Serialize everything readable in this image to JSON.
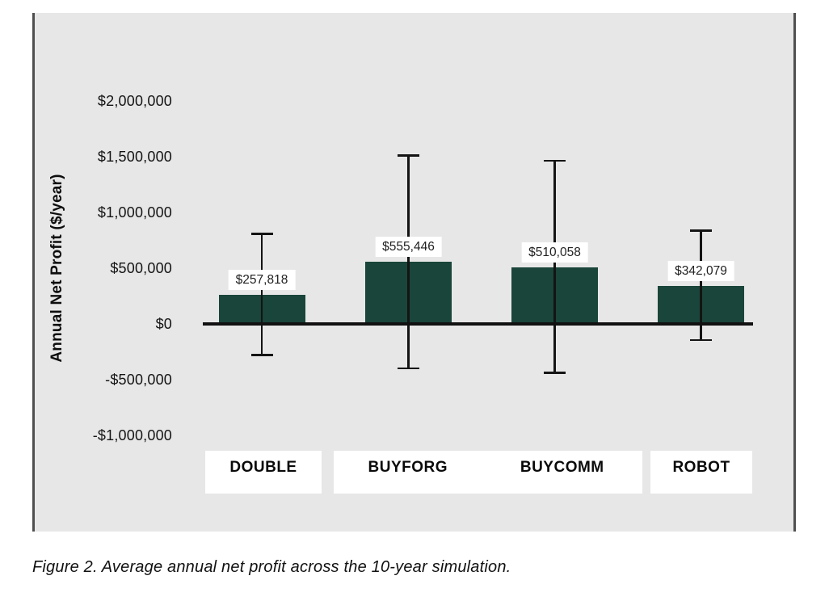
{
  "figure": {
    "caption": "Figure 2. Average annual net profit across the 10-year simulation."
  },
  "chart_data": {
    "type": "bar",
    "title": "",
    "xlabel": "",
    "ylabel": "Annual Net Profit ($/year)",
    "categories": [
      "DOUBLE",
      "BUYFORG",
      "BUYCOMM",
      "ROBOT"
    ],
    "values": [
      257818,
      555446,
      510058,
      342079
    ],
    "value_labels": [
      "$257,818",
      "$555,446",
      "$510,058",
      "$342,079"
    ],
    "error_bars": [
      {
        "category": "DOUBLE",
        "high": 810000,
        "low": -280000
      },
      {
        "category": "BUYFORG",
        "high": 1510000,
        "low": -400000
      },
      {
        "category": "BUYCOMM",
        "high": 1465000,
        "low": -440000
      },
      {
        "category": "ROBOT",
        "high": 835000,
        "low": -145000
      }
    ],
    "y_ticks": [
      {
        "label": "$2,000,000",
        "value": 2000000
      },
      {
        "label": "$1,500,000",
        "value": 1500000
      },
      {
        "label": "$1,000,000",
        "value": 1000000
      },
      {
        "label": "$500,000",
        "value": 500000
      },
      {
        "label": "$0",
        "value": 0
      },
      {
        "label": "-$500,000",
        "value": -500000
      },
      {
        "label": "-$1,000,000",
        "value": -1000000
      }
    ],
    "ylim": [
      -1100000,
      2100000
    ],
    "grid": false,
    "legend": null,
    "bar_color": "#1a453a",
    "axis_color": "#111111",
    "error_bar_color": "#141414",
    "plot_background_color": "#e7e7e7",
    "label_box_color": "#ffffff"
  }
}
